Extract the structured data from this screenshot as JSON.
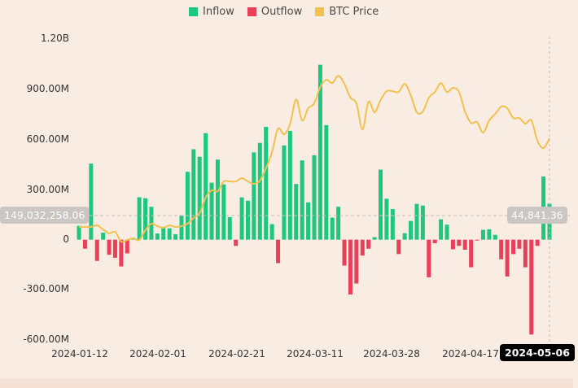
{
  "chart_data": {
    "type": "bar",
    "title": "",
    "legend": {
      "position": "top-center",
      "items": [
        {
          "name": "Inflow",
          "color": "#1ec77f"
        },
        {
          "name": "Outflow",
          "color": "#ea3f58"
        },
        {
          "name": "BTC Price",
          "color": "#f2c14e"
        }
      ]
    },
    "xlabel": "",
    "ylabel": "",
    "ylim": [
      -600000000,
      1200000000
    ],
    "y_ticks": [
      "1.20B",
      "900.00M",
      "600.00M",
      "300.00M",
      "0",
      "-300.00M",
      "-600.00M"
    ],
    "x_ticks": [
      "2024-01-12",
      "2024-02-01",
      "2024-02-21",
      "2024-03-11",
      "2024-03-28",
      "2024-04-17"
    ],
    "price_ylim": [
      20200,
      79800
    ],
    "flows_millions": [
      83,
      -54,
      455,
      -127,
      42,
      -90,
      -108,
      -160,
      -82,
      11,
      254,
      248,
      197,
      37,
      77,
      68,
      33,
      145,
      406,
      541,
      496,
      637,
      341,
      479,
      331,
      135,
      -37,
      253,
      233,
      522,
      579,
      675,
      93,
      -140,
      564,
      650,
      333,
      474,
      223,
      505,
      1046,
      685,
      132,
      197,
      -155,
      -328,
      -262,
      -95,
      -54,
      15,
      419,
      245,
      183,
      -86,
      39,
      112,
      214,
      204,
      -225,
      -21,
      122,
      90,
      -57,
      -37,
      -60,
      -165,
      -5,
      59,
      62,
      29,
      -117,
      -220,
      -86,
      -54,
      -165,
      -567,
      -37,
      378,
      215
    ],
    "btc_price": [
      42587,
      42587,
      42587,
      42909,
      42104,
      41299,
      41621,
      39689,
      40011,
      40333,
      40011,
      41943,
      43231,
      42748,
      42426,
      42909,
      42587,
      42748,
      43231,
      44358,
      45324,
      48383,
      49832,
      49671,
      51603,
      51603,
      51603,
      52247,
      51603,
      51120,
      51764,
      54179,
      57399,
      62068,
      60941,
      63034,
      67864,
      63678,
      66093,
      67059,
      70279,
      71728,
      71085,
      72534,
      70923,
      68186,
      67059,
      61907,
      67381,
      65288,
      67703,
      69474,
      69474,
      69313,
      70923,
      68669,
      65288,
      65449,
      68186,
      69313,
      71085,
      69313,
      70118,
      69313,
      65449,
      63195,
      63356,
      61263,
      63678,
      64966,
      66415,
      66093,
      64161,
      64161,
      63034,
      63678,
      59653,
      58204,
      60136
    ],
    "colors": {
      "inflow": "#1ec77f",
      "outflow": "#ea3f58",
      "price": "#f2c14e"
    }
  },
  "crosshair": {
    "y_value_label": "149,032,258.06",
    "price_label": "44,841.36",
    "date_label": "2024-05-06"
  }
}
